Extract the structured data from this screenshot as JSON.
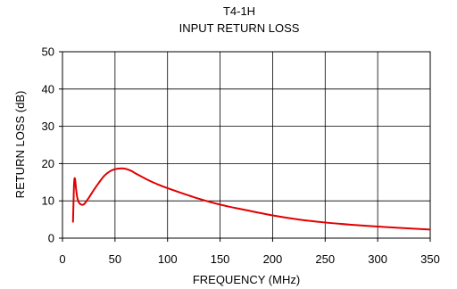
{
  "chart_data": {
    "type": "line",
    "title": "T4-1H",
    "subtitle": "INPUT RETURN LOSS",
    "xlabel": "FREQUENCY (MHz)",
    "ylabel": "RETURN LOSS (dB)",
    "xlim": [
      0,
      350
    ],
    "ylim": [
      0,
      50
    ],
    "xticks": [
      0,
      50,
      100,
      150,
      200,
      250,
      300,
      350
    ],
    "yticks": [
      0,
      10,
      20,
      30,
      40,
      50
    ],
    "grid": true,
    "legend": "none",
    "series": [
      {
        "color": "#e00000",
        "x": [
          10,
          10.5,
          11,
          11.5,
          12,
          12.5,
          13,
          14,
          15,
          16,
          18,
          20,
          22,
          25,
          30,
          35,
          40,
          45,
          50,
          55,
          60,
          65,
          70,
          80,
          90,
          100,
          125,
          150,
          175,
          200,
          225,
          250,
          275,
          300,
          325,
          350
        ],
        "y": [
          4.2,
          9.5,
          14.5,
          16.0,
          15.8,
          14.5,
          13.0,
          11.0,
          10.0,
          9.4,
          9.0,
          9.0,
          9.6,
          10.8,
          13.0,
          15.0,
          16.8,
          17.9,
          18.5,
          18.7,
          18.6,
          18.1,
          17.3,
          15.8,
          14.5,
          13.4,
          11.0,
          9.0,
          7.5,
          6.1,
          5.0,
          4.2,
          3.6,
          3.1,
          2.7,
          2.3
        ]
      }
    ]
  }
}
